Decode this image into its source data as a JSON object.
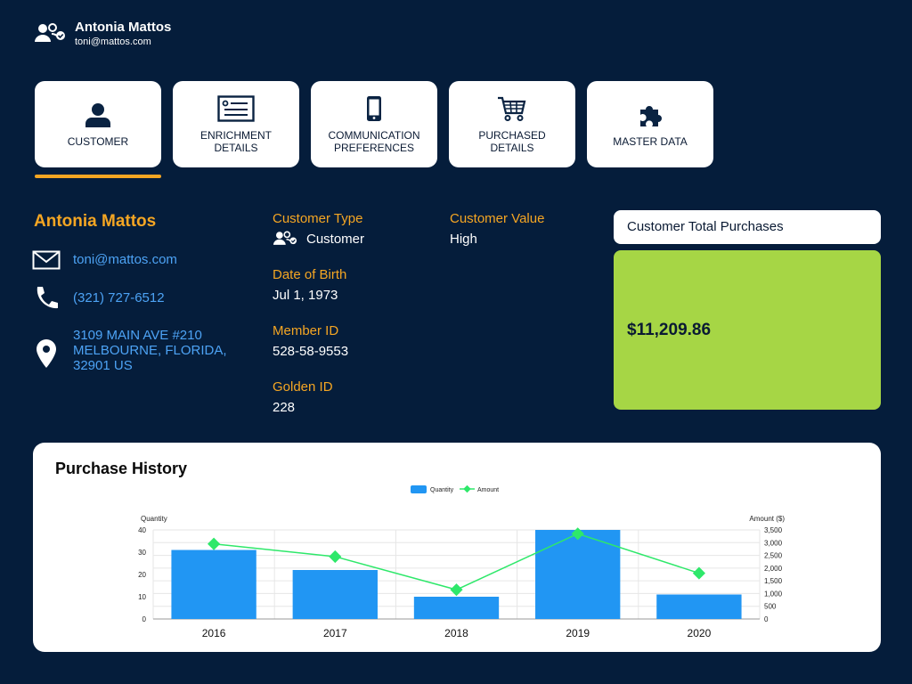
{
  "header": {
    "name": "Antonia Mattos",
    "email": "toni@mattos.com"
  },
  "tabs": [
    {
      "label": "CUSTOMER",
      "icon": "person-icon",
      "active": true
    },
    {
      "label": "ENRICHMENT DETAILS",
      "icon": "id-card-icon"
    },
    {
      "label": "COMMUNICATION PREFERENCES",
      "icon": "mobile-phone-icon"
    },
    {
      "label": "PURCHASED DETAILS",
      "icon": "shopping-cart-icon"
    },
    {
      "label": "MASTER DATA",
      "icon": "puzzle-piece-icon"
    }
  ],
  "profile": {
    "name": "Antonia Mattos",
    "email": "toni@mattos.com",
    "phone": "(321) 727-6512",
    "address": "3109 MAIN AVE #210 MELBOURNE, FLORIDA, 32901 US"
  },
  "fields": {
    "customer_type_label": "Customer Type",
    "customer_type_value": "Customer",
    "customer_value_label": "Customer Value",
    "customer_value_value": "High",
    "dob_label": "Date of Birth",
    "dob_value": "Jul 1, 1973",
    "member_id_label": "Member ID",
    "member_id_value": "528-58-9553",
    "golden_id_label": "Golden ID",
    "golden_id_value": "228"
  },
  "total_purchases": {
    "title": "Customer Total Purchases",
    "amount": "$11,209.86"
  },
  "colors": {
    "background": "#051d3b",
    "accent": "#f5a623",
    "link": "#4da3f5",
    "total_card": "#a6d645",
    "bar": "#2196f3",
    "line": "#2ee86a"
  },
  "chart_data": {
    "type": "bar",
    "title": "Purchase History",
    "categories": [
      "2016",
      "2017",
      "2018",
      "2019",
      "2020"
    ],
    "series": [
      {
        "name": "Quantity",
        "type": "bar",
        "axis": "left",
        "values": [
          31,
          22,
          10,
          40,
          11
        ]
      },
      {
        "name": "Amount",
        "type": "line",
        "axis": "right",
        "values": [
          2950,
          2450,
          1150,
          3350,
          1800
        ]
      }
    ],
    "y_left": {
      "label": "Quantity",
      "min": 0,
      "max": 40,
      "ticks": [
        "0",
        "10",
        "20",
        "30",
        "40"
      ]
    },
    "y_right": {
      "label": "Amount ($)",
      "min": 0,
      "max": 3500,
      "ticks": [
        "0",
        "500",
        "1,000",
        "1,500",
        "2,000",
        "2,500",
        "3,000",
        "3,500"
      ]
    },
    "legend": [
      "Quantity",
      "Amount"
    ],
    "legend_position": "top-center",
    "grid": true
  }
}
